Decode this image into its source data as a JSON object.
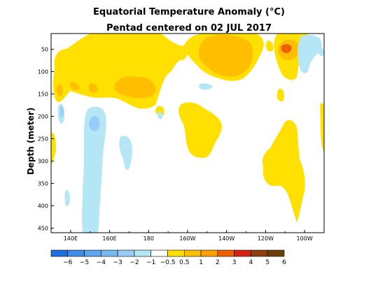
{
  "chart_data": {
    "type": "heatmap",
    "title": "Equatorial Temperature Anomaly (°C)",
    "subtitle": "Pentad centered on 02 JUL 2017",
    "ylabel": "Depth (meter)",
    "xlabel": "",
    "x_range_deg_east": [
      130,
      270
    ],
    "y_range_m": [
      15,
      460
    ],
    "y_inverted": true,
    "x_ticks": [
      {
        "label": "140E",
        "lon": 140
      },
      {
        "label": "160E",
        "lon": 160
      },
      {
        "label": "180",
        "lon": 180
      },
      {
        "label": "160W",
        "lon": 200
      },
      {
        "label": "140W",
        "lon": 220
      },
      {
        "label": "120W",
        "lon": 240
      },
      {
        "label": "100W",
        "lon": 260
      }
    ],
    "y_ticks": [
      50,
      100,
      150,
      200,
      250,
      300,
      350,
      400,
      450
    ],
    "colorbar": {
      "labels": [
        "−6",
        "−5",
        "−4",
        "−3",
        "−2",
        "−1",
        "−0.5",
        "0.5",
        "1",
        "2",
        "3",
        "4",
        "5",
        "6"
      ],
      "colors": [
        "#1e6ee0",
        "#3c8ce8",
        "#5aa5ee",
        "#78b9f2",
        "#97cdf6",
        "#b4e6f5",
        "#ffffff",
        "#ffe000",
        "#ffbe00",
        "#ffa000",
        "#f06000",
        "#d82010",
        "#904010",
        "#6a4008"
      ]
    },
    "features": [
      {
        "kind": "warm",
        "level": "1",
        "lon_range": [
          132,
          232
        ],
        "depth_range": [
          15,
          160
        ],
        "note": "upper western/central warm layer"
      },
      {
        "kind": "warm",
        "level": "2",
        "lon_range": [
          180,
          190
        ],
        "depth_range": [
          105,
          145
        ]
      },
      {
        "kind": "warm",
        "level": "2",
        "lon_range": [
          212,
          232
        ],
        "depth_range": [
          20,
          110
        ]
      },
      {
        "kind": "warm",
        "level": "1",
        "lon_range": [
          240,
          268
        ],
        "depth_range": [
          15,
          130
        ],
        "note": "eastern upper warm"
      },
      {
        "kind": "warm",
        "level": "2",
        "lon_range": [
          248,
          258
        ],
        "depth_range": [
          30,
          95
        ]
      },
      {
        "kind": "warm",
        "level": "3",
        "lon_range": [
          252,
          256
        ],
        "depth_range": [
          45,
          60
        ]
      },
      {
        "kind": "warm",
        "level": "1",
        "lon_range": [
          196,
          210
        ],
        "depth_range": [
          150,
          300
        ],
        "note": "subsurface warm tongue near 160W"
      },
      {
        "kind": "warm",
        "level": "1",
        "lon_range": [
          238,
          264
        ],
        "depth_range": [
          160,
          430
        ],
        "note": "deep eastern warm anomaly"
      },
      {
        "kind": "warm",
        "level": "1",
        "lon_range": [
          130,
          132
        ],
        "depth_range": [
          185,
          245
        ]
      },
      {
        "kind": "warm",
        "level": "1",
        "lon_range": [
          267,
          270
        ],
        "depth_range": [
          150,
          260
        ]
      },
      {
        "kind": "cool",
        "level": "-0.5",
        "lon_range": [
          153,
          167
        ],
        "depth_range": [
          150,
          460
        ],
        "note": "western subsurface cool column"
      },
      {
        "kind": "cool",
        "level": "-1",
        "lon_range": [
          158,
          162
        ],
        "depth_range": [
          190,
          225
        ]
      },
      {
        "kind": "cool",
        "level": "-1",
        "lon_range": [
          136,
          138
        ],
        "depth_range": [
          175,
          205
        ]
      },
      {
        "kind": "cool",
        "level": "-0.5",
        "lon_range": [
          172,
          178
        ],
        "depth_range": [
          235,
          310
        ]
      },
      {
        "kind": "cool",
        "level": "-0.5",
        "lon_range": [
          256,
          266
        ],
        "depth_range": [
          30,
          115
        ],
        "note": "eastern near-surface cool"
      },
      {
        "kind": "cool",
        "level": "-0.5",
        "lon_range": [
          144,
          148
        ],
        "depth_range": [
          360,
          400
        ]
      },
      {
        "kind": "cool",
        "level": "-0.5",
        "lon_range": [
          205,
          212
        ],
        "depth_range": [
          120,
          135
        ]
      }
    ]
  }
}
